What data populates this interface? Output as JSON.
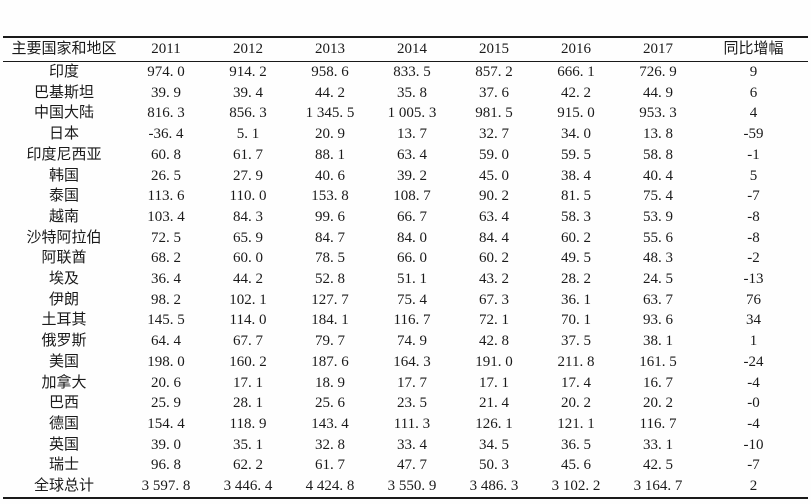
{
  "table": {
    "columns": [
      "主要国家和地区",
      "2011",
      "2012",
      "2013",
      "2014",
      "2015",
      "2016",
      "2017",
      "同比增幅"
    ],
    "rows": [
      {
        "region": "印度",
        "values": [
          "974. 0",
          "914. 2",
          "958. 6",
          "833. 5",
          "857. 2",
          "666. 1",
          "726. 9",
          "9"
        ]
      },
      {
        "region": "巴基斯坦",
        "values": [
          "39. 9",
          "39. 4",
          "44. 2",
          "35. 8",
          "37. 6",
          "42. 2",
          "44. 9",
          "6"
        ]
      },
      {
        "region": "中国大陆",
        "values": [
          "816. 3",
          "856. 3",
          "1 345. 5",
          "1 005. 3",
          "981. 5",
          "915. 0",
          "953. 3",
          "4"
        ]
      },
      {
        "region": "日本",
        "values": [
          "-36. 4",
          "5. 1",
          "20. 9",
          "13. 7",
          "32. 7",
          "34. 0",
          "13. 8",
          "-59"
        ]
      },
      {
        "region": "印度尼西亚",
        "values": [
          "60. 8",
          "61. 7",
          "88. 1",
          "63. 4",
          "59. 0",
          "59. 5",
          "58. 8",
          "-1"
        ]
      },
      {
        "region": "韩国",
        "values": [
          "26. 5",
          "27. 9",
          "40. 6",
          "39. 2",
          "45. 0",
          "38. 4",
          "40. 4",
          "5"
        ]
      },
      {
        "region": "泰国",
        "values": [
          "113. 6",
          "110. 0",
          "153. 8",
          "108. 7",
          "90. 2",
          "81. 5",
          "75. 4",
          "-7"
        ]
      },
      {
        "region": "越南",
        "values": [
          "103. 4",
          "84. 3",
          "99. 6",
          "66. 7",
          "63. 4",
          "58. 3",
          "53. 9",
          "-8"
        ]
      },
      {
        "region": "沙特阿拉伯",
        "values": [
          "72. 5",
          "65. 9",
          "84. 7",
          "84. 0",
          "84. 4",
          "60. 2",
          "55. 6",
          "-8"
        ]
      },
      {
        "region": "阿联酋",
        "values": [
          "68. 2",
          "60. 0",
          "78. 5",
          "66. 0",
          "60. 2",
          "49. 5",
          "48. 3",
          "-2"
        ]
      },
      {
        "region": "埃及",
        "values": [
          "36. 4",
          "44. 2",
          "52. 8",
          "51. 1",
          "43. 2",
          "28. 2",
          "24. 5",
          "-13"
        ]
      },
      {
        "region": "伊朗",
        "values": [
          "98. 2",
          "102. 1",
          "127. 7",
          "75. 4",
          "67. 3",
          "36. 1",
          "63. 7",
          "76"
        ]
      },
      {
        "region": "土耳其",
        "values": [
          "145. 5",
          "114. 0",
          "184. 1",
          "116. 7",
          "72. 1",
          "70. 1",
          "93. 6",
          "34"
        ]
      },
      {
        "region": "俄罗斯",
        "values": [
          "64. 4",
          "67. 7",
          "79. 7",
          "74. 9",
          "42. 8",
          "37. 5",
          "38. 1",
          "1"
        ]
      },
      {
        "region": "美国",
        "values": [
          "198. 0",
          "160. 2",
          "187. 6",
          "164. 3",
          "191. 0",
          "211. 8",
          "161. 5",
          "-24"
        ]
      },
      {
        "region": "加拿大",
        "values": [
          "20. 6",
          "17. 1",
          "18. 9",
          "17. 7",
          "17. 1",
          "17. 4",
          "16. 7",
          "-4"
        ]
      },
      {
        "region": "巴西",
        "values": [
          "25. 9",
          "28. 1",
          "25. 6",
          "23. 5",
          "21. 4",
          "20. 2",
          "20. 2",
          "-0"
        ]
      },
      {
        "region": "德国",
        "values": [
          "154. 4",
          "118. 9",
          "143. 4",
          "111. 3",
          "126. 1",
          "121. 1",
          "116. 7",
          "-4"
        ]
      },
      {
        "region": "英国",
        "values": [
          "39. 0",
          "35. 1",
          "32. 8",
          "33. 4",
          "34. 5",
          "36. 5",
          "33. 1",
          "-10"
        ]
      },
      {
        "region": "瑞士",
        "values": [
          "96. 8",
          "62. 2",
          "61. 7",
          "47. 7",
          "50. 3",
          "45. 6",
          "42. 5",
          "-7"
        ]
      },
      {
        "region": "全球总计",
        "values": [
          "3 597. 8",
          "3 446. 4",
          "4 424. 8",
          "3 550. 9",
          "3 486. 3",
          "3 102. 2",
          "3 164. 7",
          "2"
        ]
      }
    ]
  },
  "chart_data": {
    "type": "table",
    "title": "",
    "columns": [
      "主要国家和地区",
      "2011",
      "2012",
      "2013",
      "2014",
      "2015",
      "2016",
      "2017",
      "同比增幅"
    ],
    "rows": [
      [
        "印度",
        974.0,
        914.2,
        958.6,
        833.5,
        857.2,
        666.1,
        726.9,
        9
      ],
      [
        "巴基斯坦",
        39.9,
        39.4,
        44.2,
        35.8,
        37.6,
        42.2,
        44.9,
        6
      ],
      [
        "中国大陆",
        816.3,
        856.3,
        1345.5,
        1005.3,
        981.5,
        915.0,
        953.3,
        4
      ],
      [
        "日本",
        -36.4,
        5.1,
        20.9,
        13.7,
        32.7,
        34.0,
        13.8,
        -59
      ],
      [
        "印度尼西亚",
        60.8,
        61.7,
        88.1,
        63.4,
        59.0,
        59.5,
        58.8,
        -1
      ],
      [
        "韩国",
        26.5,
        27.9,
        40.6,
        39.2,
        45.0,
        38.4,
        40.4,
        5
      ],
      [
        "泰国",
        113.6,
        110.0,
        153.8,
        108.7,
        90.2,
        81.5,
        75.4,
        -7
      ],
      [
        "越南",
        103.4,
        84.3,
        99.6,
        66.7,
        63.4,
        58.3,
        53.9,
        -8
      ],
      [
        "沙特阿拉伯",
        72.5,
        65.9,
        84.7,
        84.0,
        84.4,
        60.2,
        55.6,
        -8
      ],
      [
        "阿联酋",
        68.2,
        60.0,
        78.5,
        66.0,
        60.2,
        49.5,
        48.3,
        -2
      ],
      [
        "埃及",
        36.4,
        44.2,
        52.8,
        51.1,
        43.2,
        28.2,
        24.5,
        -13
      ],
      [
        "伊朗",
        98.2,
        102.1,
        127.7,
        75.4,
        67.3,
        36.1,
        63.7,
        76
      ],
      [
        "土耳其",
        145.5,
        114.0,
        184.1,
        116.7,
        72.1,
        70.1,
        93.6,
        34
      ],
      [
        "俄罗斯",
        64.4,
        67.7,
        79.7,
        74.9,
        42.8,
        37.5,
        38.1,
        1
      ],
      [
        "美国",
        198.0,
        160.2,
        187.6,
        164.3,
        191.0,
        211.8,
        161.5,
        -24
      ],
      [
        "加拿大",
        20.6,
        17.1,
        18.9,
        17.7,
        17.1,
        17.4,
        16.7,
        -4
      ],
      [
        "巴西",
        25.9,
        28.1,
        25.6,
        23.5,
        21.4,
        20.2,
        20.2,
        0
      ],
      [
        "德国",
        154.4,
        118.9,
        143.4,
        111.3,
        126.1,
        121.1,
        116.7,
        -4
      ],
      [
        "英国",
        39.0,
        35.1,
        32.8,
        33.4,
        34.5,
        36.5,
        33.1,
        -10
      ],
      [
        "瑞士",
        96.8,
        62.2,
        61.7,
        47.7,
        50.3,
        45.6,
        42.5,
        -7
      ],
      [
        "全球总计",
        3597.8,
        3446.4,
        4424.8,
        3550.9,
        3486.3,
        3102.2,
        3164.7,
        2
      ]
    ]
  }
}
